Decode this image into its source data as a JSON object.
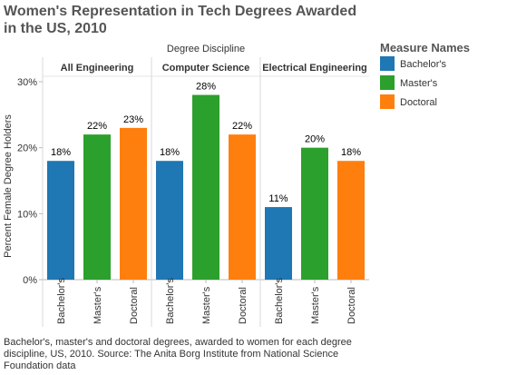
{
  "title": "Women's Representation in Tech Degrees Awarded in the US, 2010",
  "caption": "Bachelor's, master's and doctoral degrees, awarded to women for each degree discipline, US, 2010. Source: The Anita Borg Institute from National Science Foundation data",
  "legend": {
    "title": "Measure Names",
    "items": [
      {
        "label": "Bachelor's",
        "color": "#1f77b4"
      },
      {
        "label": "Master's",
        "color": "#2ca02c"
      },
      {
        "label": "Doctoral",
        "color": "#ff7f0e"
      }
    ]
  },
  "chart_data": {
    "type": "bar",
    "column_header": "Degree Discipline",
    "ylabel": "Percent Female Degree Holders",
    "ylim": [
      0,
      30
    ],
    "yticks": [
      "0%",
      "10%",
      "20%",
      "30%"
    ],
    "groups": [
      {
        "name": "All Engineering",
        "categories": [
          "Bachelor's",
          "Master's",
          "Doctoral"
        ],
        "values": [
          18,
          22,
          23
        ],
        "labels": [
          "18%",
          "22%",
          "23%"
        ]
      },
      {
        "name": "Computer Science",
        "categories": [
          "Bachelor's",
          "Master's",
          "Doctoral"
        ],
        "values": [
          18,
          28,
          22
        ],
        "labels": [
          "18%",
          "28%",
          "22%"
        ]
      },
      {
        "name": "Electrical Engineering",
        "categories": [
          "Bachelor's",
          "Master's",
          "Doctoral"
        ],
        "values": [
          11,
          20,
          18
        ],
        "labels": [
          "11%",
          "20%",
          "18%"
        ]
      }
    ],
    "colors": [
      "#1f77b4",
      "#2ca02c",
      "#ff7f0e"
    ],
    "grid": false,
    "legend_position": "right"
  }
}
